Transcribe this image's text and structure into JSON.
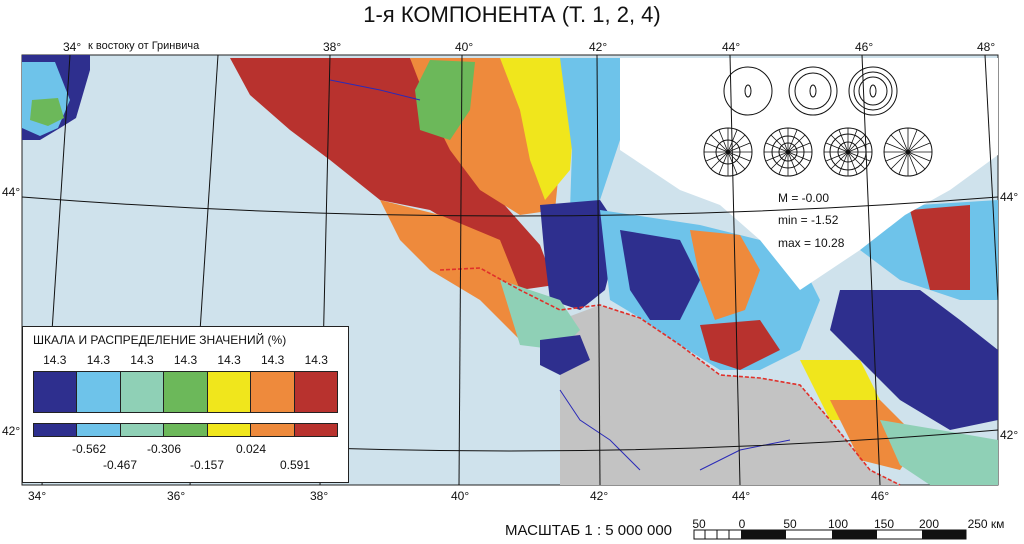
{
  "title": "1-я КОМПОНЕНТА (Т. 1, 2, 4)",
  "longitude_caption": "к востоку от Гринвича",
  "top_longitudes": [
    "34°",
    "38°",
    "40°",
    "42°",
    "44°",
    "46°",
    "48°"
  ],
  "bottom_longitudes": [
    "34°",
    "36°",
    "38°",
    "40°",
    "42°",
    "44°",
    "46°"
  ],
  "latitudes": {
    "left_44": "44°",
    "right_44": "44°",
    "left_42": "42°",
    "right_42": "42°"
  },
  "legend": {
    "title": "ШКАЛА И РАСПРЕДЕЛЕНИЕ ЗНАЧЕНИЙ (%)",
    "percents": [
      "14.3",
      "14.3",
      "14.3",
      "14.3",
      "14.3",
      "14.3",
      "14.3"
    ],
    "colors": [
      "#2e2f8e",
      "#6ec3ea",
      "#8fd0b6",
      "#6cb85a",
      "#f0e61c",
      "#ee8a3c",
      "#b8322e"
    ],
    "breaks_upper": [
      "-0.562",
      "-0.306",
      "0.024"
    ],
    "breaks_lower": [
      "-0.467",
      "-0.157",
      "0.591"
    ]
  },
  "stats": {
    "M": "M = -0.00",
    "min": "min = -1.52",
    "max": "max = 10.28"
  },
  "scale": {
    "label": "МАСШТАБ 1 : 5 000 000",
    "ticks": [
      "50",
      "0",
      "50",
      "100",
      "150",
      "200",
      "250 км"
    ]
  },
  "colors": {
    "sea": "#cfe2ec",
    "land_outside": "#c3c3c3",
    "border": "#e0302a",
    "river": "#2a2ab8"
  }
}
